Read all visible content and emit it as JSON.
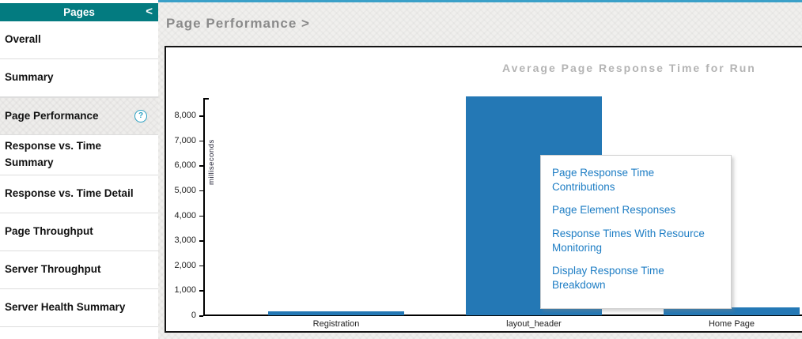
{
  "sidebar": {
    "header": {
      "title": "Pages",
      "collapse_icon": "<"
    },
    "help_glyph": "?",
    "items": [
      {
        "label": "Overall",
        "selected": false,
        "has_help": false
      },
      {
        "label": "Summary",
        "selected": false,
        "has_help": false
      },
      {
        "label": "Page Performance",
        "selected": true,
        "has_help": true
      },
      {
        "label": "Response vs. Time Summary",
        "selected": false,
        "has_help": false
      },
      {
        "label": "Response vs. Time Detail",
        "selected": false,
        "has_help": false
      },
      {
        "label": "Page Throughput",
        "selected": false,
        "has_help": false
      },
      {
        "label": "Server Throughput",
        "selected": false,
        "has_help": false
      },
      {
        "label": "Server Health Summary",
        "selected": false,
        "has_help": false
      }
    ]
  },
  "main": {
    "breadcrumb": "Page Performance >"
  },
  "chart_data": {
    "type": "bar",
    "title": "Average Page Response Time for Run",
    "ylabel": "milliseconds",
    "xlabel": "",
    "categories": [
      "Registration",
      "layout_header",
      "Home Page"
    ],
    "values": [
      150,
      8770,
      310
    ],
    "ylim": [
      0,
      8700
    ],
    "yticks": [
      0,
      1000,
      2000,
      3000,
      4000,
      5000,
      6000,
      7000,
      8000
    ],
    "bar_color": "#2478b5",
    "grid": false,
    "legend": null
  },
  "context_menu": {
    "items": [
      "Page Response Time Contributions",
      "Page Element Responses",
      "Response Times With Resource Monitoring",
      "Display Response Time Breakdown"
    ]
  },
  "colors": {
    "sidebar_header": "#037b80",
    "selected_item_bg": "#eeedeb",
    "accent_top_border": "#3aa0c8",
    "bar": "#2478b5",
    "link": "#1d7dc4",
    "chart_title": "#b4b4b4",
    "page_title": "#8a8a8a",
    "help_icon": "#29a0c2"
  }
}
